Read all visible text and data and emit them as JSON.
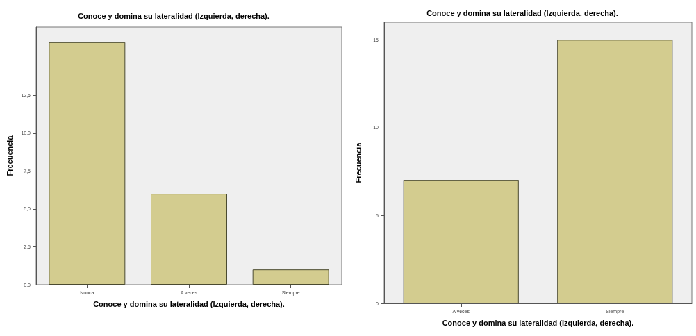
{
  "chart_data": [
    {
      "type": "bar",
      "title": "Conoce y domina su lateralidad (Izquierda, derecha).",
      "xlabel": "Conoce y domina su lateralidad (Izquierda, derecha).",
      "ylabel": "Frecuencia",
      "categories": [
        "Nunca",
        "A veces",
        "Siempre"
      ],
      "values": [
        16,
        6,
        1
      ],
      "color": "#d3cc8f",
      "ylim": [
        0,
        17
      ],
      "yticks": [
        {
          "value": 0,
          "label": "0,0"
        },
        {
          "value": 2.5,
          "label": "2,5"
        },
        {
          "value": 5,
          "label": "5,0"
        },
        {
          "value": 7.5,
          "label": "7,5"
        },
        {
          "value": 10,
          "label": "10,0"
        },
        {
          "value": 12.5,
          "label": "12,5"
        }
      ],
      "grid": false
    },
    {
      "type": "bar",
      "title": "Conoce y domina su lateralidad (Izquierda, derecha).",
      "xlabel": "Conoce y domina su lateralidad (Izquierda, derecha).",
      "ylabel": "Frecuencia",
      "categories": [
        "A veces",
        "Siempre"
      ],
      "values": [
        7,
        15
      ],
      "color": "#d3cc8f",
      "ylim": [
        0,
        16
      ],
      "yticks": [
        0,
        5,
        10,
        15
      ],
      "grid": false
    }
  ]
}
